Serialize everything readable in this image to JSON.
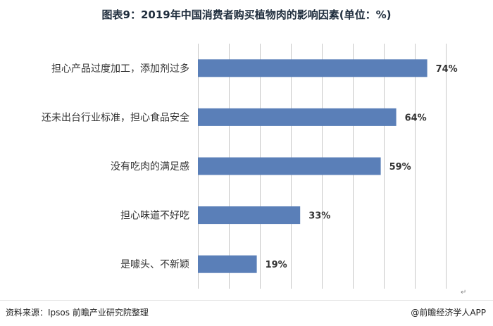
{
  "title": "图表9：2019年中国消费者购买植物肉的影响因素(单位：%)",
  "chart_data": {
    "type": "bar",
    "orientation": "horizontal",
    "categories": [
      "担心产品过度加工，添加剂过多",
      "还未出台行业标准，担心食品安全",
      "没有吃肉的满足感",
      "担心味道不好吃",
      "是噱头、不新颖"
    ],
    "values": [
      74,
      64,
      59,
      33,
      19
    ],
    "value_labels": [
      "74%",
      "64%",
      "59%",
      "33%",
      "19%"
    ],
    "xlim": [
      0,
      80
    ],
    "grid": true,
    "color": "#5a7fb8"
  },
  "footer": {
    "source": "资料来源：Ipsos 前瞻产业研究院整理",
    "app": "@前瞻经济学人APP"
  },
  "return_mark": "↵"
}
